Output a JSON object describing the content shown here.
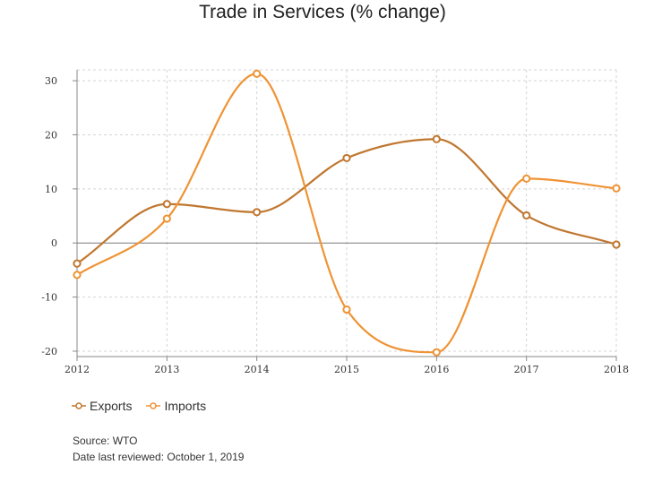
{
  "chart_data": {
    "type": "line",
    "title": "Trade in Services (% change)",
    "x": [
      "2012",
      "2013",
      "2014",
      "2015",
      "2016",
      "2017",
      "2018"
    ],
    "series": [
      {
        "name": "Exports",
        "color": "#c0772f",
        "values": [
          -3.8,
          7.2,
          5.7,
          15.7,
          19.2,
          5.1,
          -0.3
        ]
      },
      {
        "name": "Imports",
        "color": "#ef9334",
        "values": [
          -5.9,
          4.5,
          31.3,
          -12.3,
          -20.2,
          11.9,
          10.1
        ]
      }
    ],
    "yticks": [
      30,
      20,
      10,
      0,
      -10,
      -20
    ],
    "ylim": [
      -21,
      32
    ],
    "grid": true,
    "legend": "bottom-left",
    "zero_line_color": "#7a7a7a"
  },
  "footer": {
    "source": "Source: WTO",
    "reviewed": "Date last reviewed: October 1, 2019"
  }
}
